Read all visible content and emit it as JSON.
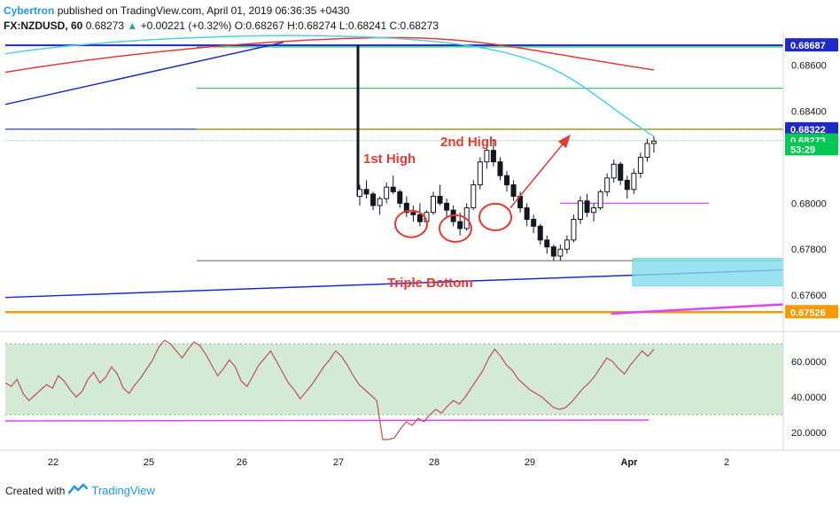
{
  "header": {
    "author": "Cybertron",
    "published": "published on TradingView.com, April 01, 2019 06:36:35 +0430",
    "symbol": "FX:NZDUSD, 60",
    "last": "0.68273",
    "change": "+0.00221 (+0.32%)",
    "ohlc": "O:0.68267 H:0.68274 L:0.68241 C:0.68273"
  },
  "footer": {
    "created_with": "Created with",
    "brand": "TradingView"
  },
  "annotations": {
    "first_high": "1st High",
    "second_high": "2nd High",
    "triple_bottom": "Triple Bottom"
  },
  "colors": {
    "candle_up": "#26a69a",
    "annotation": "#e53935",
    "trend_blue": "#1e2ac8",
    "ma_red": "#e53935",
    "ma_cyan": "#4dd0e1",
    "support_orange": "#ff9800",
    "rsi_line": "#c2504f",
    "rsi_band": "#c8e6c9",
    "magenta": "#e040fb"
  },
  "chart_data": [
    {
      "type": "candlestick",
      "title": "FX:NZDUSD, 60",
      "x_ticks": [
        "22",
        "25",
        "26",
        "27",
        "28",
        "29",
        "Apr",
        "2"
      ],
      "y_ticks": [
        "0.68600",
        "0.68400",
        "0.68000",
        "0.67800",
        "0.67600"
      ],
      "ylim": [
        0.6745,
        0.6873
      ],
      "price_labels": [
        {
          "label": "0.68687",
          "value": 0.68687,
          "color": "#1e2ac8"
        },
        {
          "label": "0.68322",
          "value": 0.68322,
          "color": "#1e2ac8"
        },
        {
          "label": "0.68273",
          "value": 0.68273,
          "color": "#00c853"
        },
        {
          "label": "53:29",
          "value": 0.68235,
          "color": "#00c853"
        },
        {
          "label": "0.67526",
          "value": 0.67526,
          "color": "#ff9800"
        }
      ],
      "candles": [
        [
          0.6803,
          0.6808,
          0.6799,
          0.6806
        ],
        [
          0.6806,
          0.681,
          0.6802,
          0.6804
        ],
        [
          0.6804,
          0.6805,
          0.6797,
          0.6799
        ],
        [
          0.6799,
          0.6803,
          0.6795,
          0.6802
        ],
        [
          0.6802,
          0.6809,
          0.68,
          0.6807
        ],
        [
          0.6807,
          0.6812,
          0.6804,
          0.6805
        ],
        [
          0.6805,
          0.6806,
          0.6798,
          0.68
        ],
        [
          0.68,
          0.6803,
          0.6794,
          0.6796
        ],
        [
          0.6796,
          0.6799,
          0.6792,
          0.6795
        ],
        [
          0.6795,
          0.68,
          0.679,
          0.6792
        ],
        [
          0.6792,
          0.6797,
          0.6789,
          0.6796
        ],
        [
          0.6796,
          0.6805,
          0.6795,
          0.6803
        ],
        [
          0.6803,
          0.6808,
          0.6799,
          0.68
        ],
        [
          0.68,
          0.6802,
          0.6794,
          0.6797
        ],
        [
          0.6797,
          0.6799,
          0.679,
          0.6792
        ],
        [
          0.6792,
          0.6796,
          0.6786,
          0.6789
        ],
        [
          0.6789,
          0.68,
          0.6788,
          0.6798
        ],
        [
          0.6798,
          0.681,
          0.6797,
          0.6808
        ],
        [
          0.6808,
          0.682,
          0.6806,
          0.6818
        ],
        [
          0.6818,
          0.6826,
          0.6815,
          0.6823
        ],
        [
          0.6823,
          0.6828,
          0.6816,
          0.6818
        ],
        [
          0.6818,
          0.682,
          0.681,
          0.6812
        ],
        [
          0.6812,
          0.6814,
          0.6805,
          0.6808
        ],
        [
          0.6808,
          0.681,
          0.6801,
          0.6803
        ],
        [
          0.6803,
          0.6805,
          0.6796,
          0.6798
        ],
        [
          0.6798,
          0.68,
          0.679,
          0.6793
        ],
        [
          0.6793,
          0.6795,
          0.6787,
          0.679
        ],
        [
          0.679,
          0.6791,
          0.6782,
          0.6784
        ],
        [
          0.6784,
          0.6786,
          0.6778,
          0.6781
        ],
        [
          0.6781,
          0.6782,
          0.6775,
          0.6777
        ],
        [
          0.6777,
          0.6782,
          0.6775,
          0.678
        ],
        [
          0.678,
          0.6786,
          0.6778,
          0.6784
        ],
        [
          0.6784,
          0.6795,
          0.6783,
          0.6793
        ],
        [
          0.6793,
          0.6803,
          0.6791,
          0.6801
        ],
        [
          0.6801,
          0.6804,
          0.6794,
          0.6796
        ],
        [
          0.6796,
          0.68,
          0.6792,
          0.6798
        ],
        [
          0.6798,
          0.6806,
          0.6797,
          0.6805
        ],
        [
          0.6805,
          0.6813,
          0.6803,
          0.6811
        ],
        [
          0.6811,
          0.6819,
          0.6809,
          0.6817
        ],
        [
          0.6817,
          0.6818,
          0.6808,
          0.681
        ],
        [
          0.681,
          0.6812,
          0.6802,
          0.6806
        ],
        [
          0.6806,
          0.6815,
          0.6804,
          0.6813
        ],
        [
          0.6813,
          0.6822,
          0.6811,
          0.682
        ],
        [
          0.682,
          0.6828,
          0.6818,
          0.6826
        ],
        [
          0.6826,
          0.6829,
          0.6822,
          0.6827
        ]
      ]
    },
    {
      "type": "line",
      "title": "RSI",
      "y_ticks": [
        "60.0000",
        "40.0000",
        "20.0000"
      ],
      "ylim": [
        10,
        75
      ],
      "band": [
        30,
        70
      ],
      "values": [
        48,
        46,
        50,
        42,
        38,
        41,
        44,
        47,
        45,
        52,
        49,
        44,
        40,
        43,
        50,
        54,
        48,
        51,
        57,
        53,
        45,
        42,
        47,
        51,
        56,
        61,
        68,
        72,
        70,
        66,
        62,
        67,
        71,
        69,
        64,
        58,
        52,
        56,
        61,
        57,
        49,
        46,
        52,
        58,
        62,
        66,
        60,
        54,
        48,
        44,
        39,
        43,
        47,
        52,
        57,
        61,
        66,
        63,
        58,
        52,
        47,
        44,
        41,
        38,
        16,
        16,
        17,
        22,
        26,
        24,
        28,
        26,
        30,
        33,
        31,
        35,
        38,
        36,
        40,
        45,
        50,
        55,
        62,
        67,
        63,
        58,
        55,
        50,
        47,
        44,
        42,
        40,
        37,
        34,
        33,
        34,
        37,
        41,
        45,
        48,
        52,
        57,
        62,
        60,
        56,
        53,
        58,
        62,
        66,
        63,
        67
      ]
    }
  ]
}
